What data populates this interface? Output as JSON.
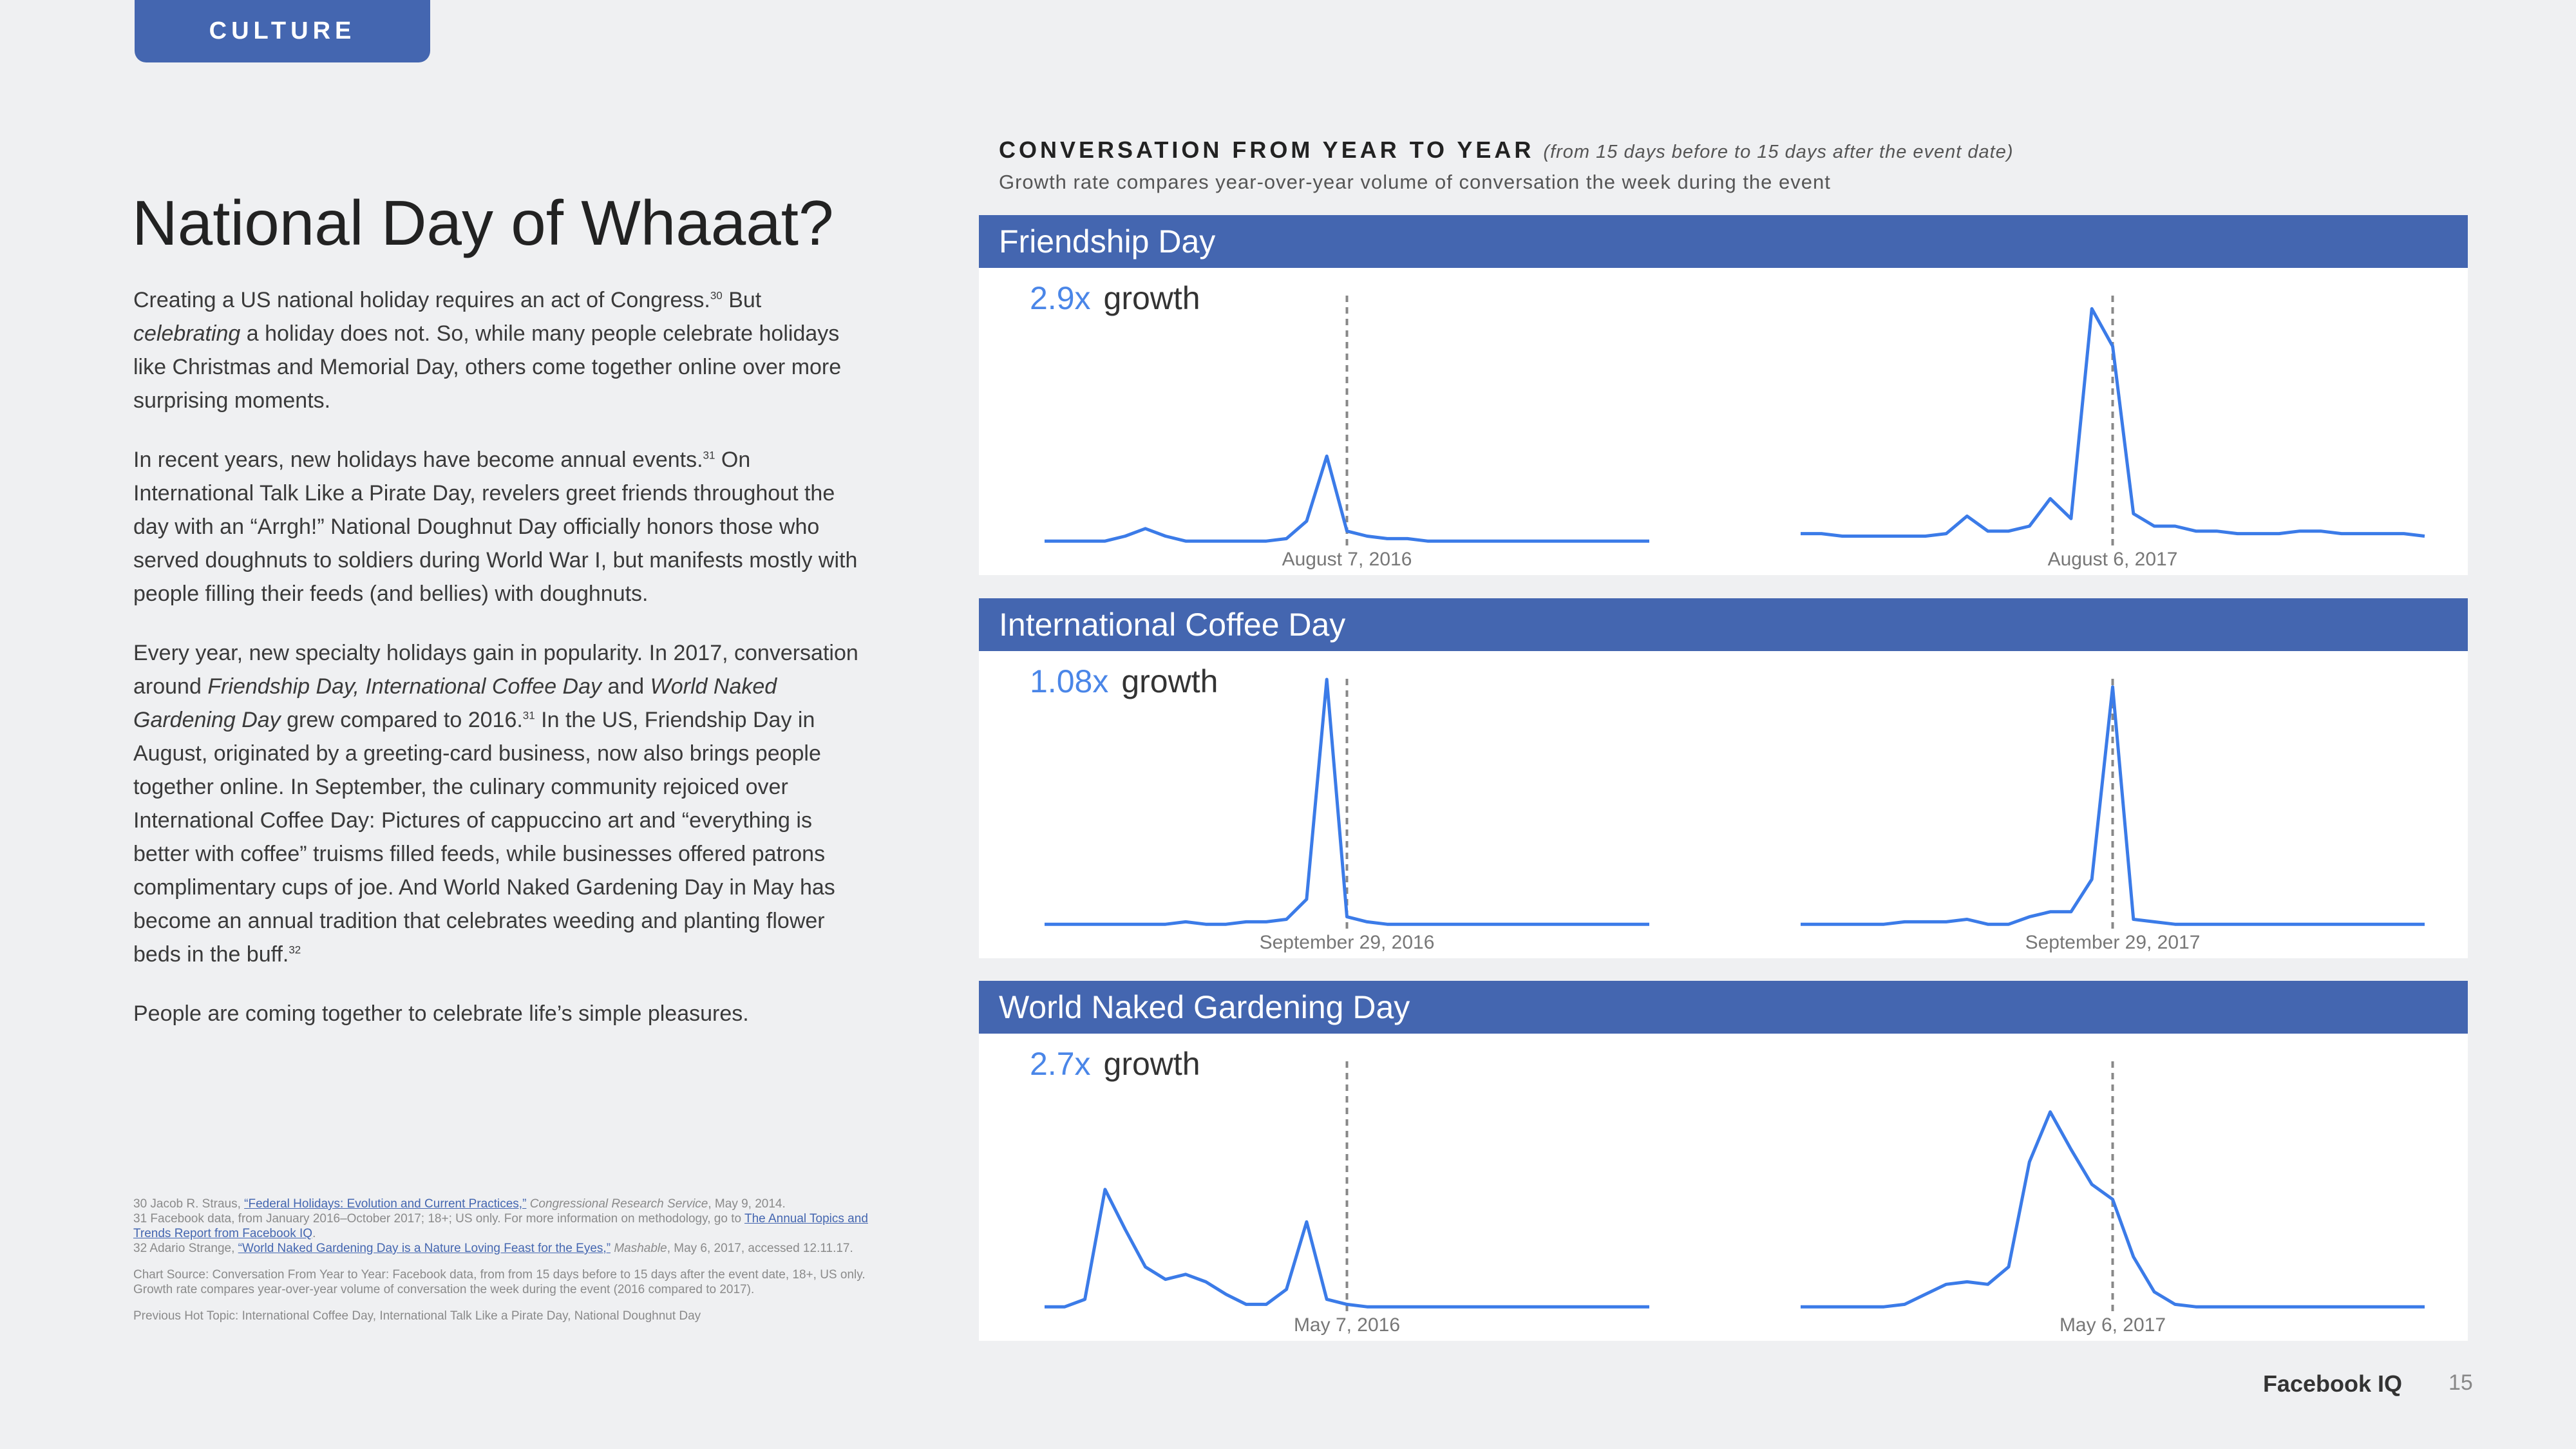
{
  "tab": "CULTURE",
  "title": "National Day of Whaaat?",
  "paragraphs": [
    [
      "Creating a US national holiday requires an act of Congress.",
      {
        "sup": "30"
      },
      " But ",
      {
        "i": "celebrating"
      },
      " a holiday does not. So, while many people celebrate holidays like Christmas and Memorial Day, others come together online over more surprising moments."
    ],
    [
      "In recent years, new holidays have become annual events.",
      {
        "sup": "31"
      },
      " On International Talk Like a Pirate Day, revelers greet friends throughout the day with an “Arrgh!” National Doughnut Day officially honors those who served doughnuts to soldiers during World War I, but manifests mostly with people filling their feeds (and bellies) with doughnuts."
    ],
    [
      "Every year, new specialty holidays gain in popularity. In 2017, conversation around ",
      {
        "i": "Friendship Day, International Coffee Day"
      },
      " and ",
      {
        "i": "World Naked Gardening Day"
      },
      " grew compared to 2016.",
      {
        "sup": "31"
      },
      " In the US, Friendship Day in August, originated by a greeting-card business, now also brings people together online. In September, the culinary community rejoiced over International Coffee Day: Pictures of cappuccino art and “everything is better with coffee” truisms filled feeds, while businesses offered patrons complimentary cups of joe. And World Naked Gardening Day in May has become an annual tradition that celebrates weeding and planting flower beds in the buff.",
      {
        "sup": "32"
      }
    ],
    [
      "People are coming together to celebrate life’s simple pleasures."
    ]
  ],
  "footnotes": [
    [
      "30  Jacob R. Straus, ",
      {
        "a": "“Federal Holidays: Evolution and Current Practices,”"
      },
      " ",
      {
        "i": "Congressional Research Service"
      },
      ", May 9, 2014."
    ],
    [
      "31  Facebook data, from January 2016–October 2017; 18+; US only. For more information on methodology, go to ",
      {
        "a": "The Annual Topics and Trends Report from Facebook IQ"
      },
      "."
    ],
    [
      "32  Adario Strange, ",
      {
        "a": "“World Naked Gardening Day is a Nature Loving Feast for the Eyes,”"
      },
      " ",
      {
        "i": "Mashable"
      },
      ", May 6, 2017, accessed 12.11.17."
    ]
  ],
  "chart_source": "Chart Source:  Conversation From Year to Year: Facebook data, from from 15 days before to 15 days after the event date, 18+, US only. Growth rate compares year-over-year volume of conversation the week during the event (2016 compared to 2017).",
  "previous": "Previous Hot Topic: International Coffee Day, International Talk Like a Pirate Day, National Doughnut Day",
  "section": {
    "heading": "CONVERSATION FROM YEAR TO YEAR",
    "note": "(from 15 days before to 15 days after the event date)",
    "subtitle": "Growth rate compares year-over-year volume of conversation the week during the event",
    "panels": [
      {
        "title": "Friendship Day",
        "growth_value": "2.9x",
        "growth_word": "growth",
        "charts": [
          {
            "date": "August 7, 2016",
            "values": [
              2,
              2,
              2,
              2,
              4,
              7,
              4,
              2,
              2,
              2,
              2,
              2,
              3,
              10,
              36,
              6,
              4,
              3,
              3,
              2,
              2,
              2,
              2,
              2,
              2,
              2,
              2,
              2,
              2,
              2,
              2
            ]
          },
          {
            "date": "August 6, 2017",
            "values": [
              5,
              5,
              4,
              4,
              4,
              4,
              4,
              5,
              12,
              6,
              6,
              8,
              19,
              11,
              95,
              80,
              13,
              8,
              8,
              6,
              6,
              5,
              5,
              5,
              6,
              6,
              5,
              5,
              5,
              5,
              4
            ]
          }
        ]
      },
      {
        "title": "International Coffee Day",
        "growth_value": "1.08x",
        "growth_word": "growth",
        "charts": [
          {
            "date": "September 29, 2016",
            "values": [
              2,
              2,
              2,
              2,
              2,
              2,
              2,
              3,
              2,
              2,
              3,
              3,
              4,
              12,
              100,
              5,
              3,
              2,
              2,
              2,
              2,
              2,
              2,
              2,
              2,
              2,
              2,
              2,
              2,
              2,
              2
            ]
          },
          {
            "date": "September 29, 2017",
            "values": [
              2,
              2,
              2,
              2,
              2,
              3,
              3,
              3,
              4,
              2,
              2,
              5,
              7,
              7,
              20,
              97,
              4,
              3,
              2,
              2,
              2,
              2,
              2,
              2,
              2,
              2,
              2,
              2,
              2,
              2,
              2
            ]
          }
        ]
      },
      {
        "title": "World Naked Gardening Day",
        "growth_value": "2.7x",
        "growth_word": "growth",
        "charts": [
          {
            "date": "May 7, 2016",
            "values": [
              2,
              2,
              5,
              49,
              33,
              18,
              13,
              15,
              12,
              7,
              3,
              3,
              9,
              36,
              5,
              3,
              2,
              2,
              2,
              2,
              2,
              2,
              2,
              2,
              2,
              2,
              2,
              2,
              2,
              2,
              2
            ]
          },
          {
            "date": "May 6, 2017",
            "values": [
              2,
              2,
              2,
              2,
              2,
              3,
              7,
              11,
              12,
              11,
              18,
              60,
              80,
              65,
              51,
              45,
              22,
              8,
              3,
              2,
              2,
              2,
              2,
              2,
              2,
              2,
              2,
              2,
              2,
              2,
              2
            ]
          }
        ]
      }
    ]
  },
  "footer": {
    "brand": "Facebook IQ",
    "page": "15"
  }
}
